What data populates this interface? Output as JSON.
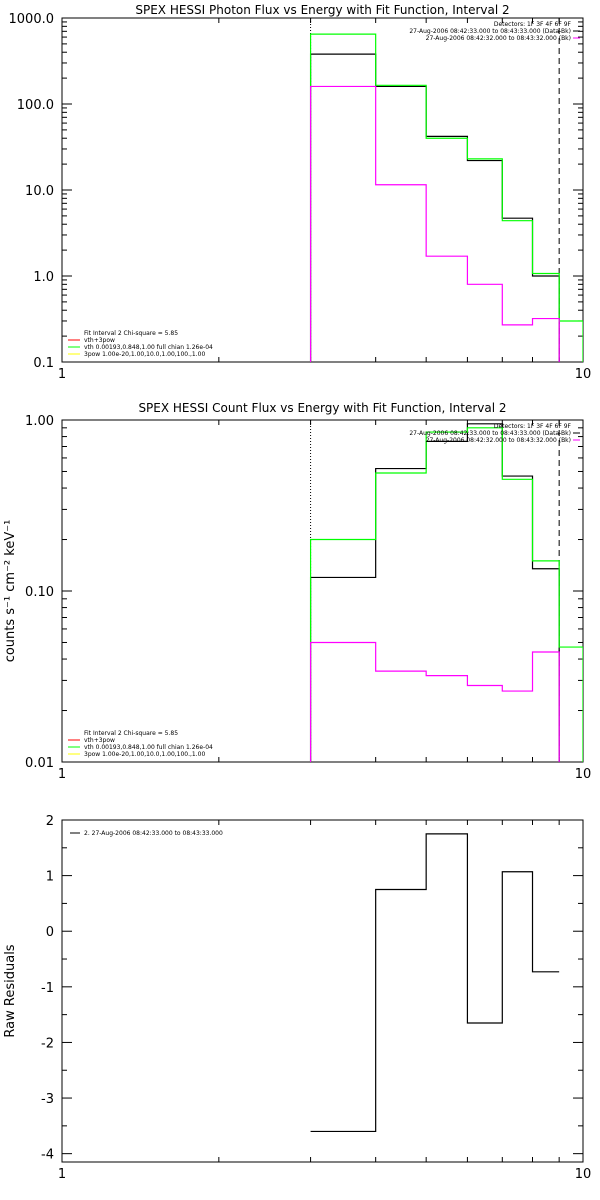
{
  "chart_data": [
    {
      "type": "line",
      "title": "SPEX HESSI Photon Flux vs Energy with Fit Function, Interval 2",
      "xlabel": "",
      "ylabel": "",
      "xscale": "log",
      "yscale": "log",
      "xlim": [
        1,
        10
      ],
      "ylim": [
        0.1,
        1000
      ],
      "x_ticks": [
        "1",
        "10"
      ],
      "y_ticks": [
        "0.1",
        "1.0",
        "10.0",
        "100.0",
        "1000.0"
      ],
      "marker_lines": [
        {
          "x": 3.0,
          "style": "dotted",
          "color": "#000000"
        },
        {
          "x": 9.0,
          "style": "dashed",
          "color": "#000000"
        }
      ],
      "legend_top_right": [
        {
          "text": "Detectors: 1F 3F 4F 6F 9F",
          "color": "#000000"
        },
        {
          "text": "27-Aug-2006 08:42:33.000 to 08:43:33.000 (Data-Bk)",
          "color": "#000000"
        },
        {
          "text": "27-Aug-2006 08:42:32.000 to 08:43:32.000 (Bk)",
          "color": "#ff00ff"
        }
      ],
      "legend_bottom_left": [
        {
          "text": "Fit Interval 2   Chi-square = 5.85",
          "color": "#000000"
        },
        {
          "text": "vth+3pow",
          "color": "#ff0000"
        },
        {
          "text": "vth 0.00193,0.848,1.00   full chian 1.26e-04",
          "color": "#00ff00"
        },
        {
          "text": "3pow 1.00e-20,1.00,10.0,1.00,100.,1.00",
          "color": "#ffff00"
        }
      ],
      "bin_edges": [
        3.0,
        4.0,
        5.0,
        6.0,
        7.0,
        8.0,
        9.0,
        10.0
      ],
      "series": [
        {
          "name": "Data-Bk",
          "color": "#000000",
          "values": [
            380,
            160,
            42,
            22,
            4.7,
            1.0
          ]
        },
        {
          "name": "vth",
          "color": "#00ff00",
          "values": [
            650,
            165,
            40,
            23,
            4.4,
            1.07,
            0.3
          ]
        },
        {
          "name": "Bk",
          "color": "#ff00ff",
          "values": [
            160,
            11.5,
            1.7,
            0.8,
            0.27,
            0.32
          ]
        }
      ]
    },
    {
      "type": "line",
      "title": "SPEX HESSI Count Flux vs Energy with Fit Function, Interval 2",
      "xlabel": "",
      "ylabel": "counts s⁻¹ cm⁻² keV⁻¹",
      "xscale": "log",
      "yscale": "log",
      "xlim": [
        1,
        10
      ],
      "ylim": [
        0.01,
        1
      ],
      "x_ticks": [
        "1",
        "10"
      ],
      "y_ticks": [
        "0.01",
        "0.10",
        "1.00"
      ],
      "marker_lines": [
        {
          "x": 3.0,
          "style": "dotted",
          "color": "#000000"
        },
        {
          "x": 9.0,
          "style": "dashed",
          "color": "#000000"
        }
      ],
      "legend_top_right": [
        {
          "text": "Detectors: 1F 3F 4F 6F 9F",
          "color": "#000000"
        },
        {
          "text": "27-Aug-2006 08:42:33.000 to 08:43:33.000 (Data-Bk)",
          "color": "#000000"
        },
        {
          "text": "27-Aug-2006 08:42:32.000 to 08:43:32.000 (Bk)",
          "color": "#ff00ff"
        }
      ],
      "legend_bottom_left": [
        {
          "text": "Fit Interval 2   Chi-square = 5.85",
          "color": "#000000"
        },
        {
          "text": "vth+3pow",
          "color": "#ff0000"
        },
        {
          "text": "vth 0.00193,0.848,1.00   full chian 1.26e-04",
          "color": "#00ff00"
        },
        {
          "text": "3pow 1.00e-20,1.00,10.0,1.00,100.,1.00",
          "color": "#ffff00"
        }
      ],
      "bin_edges": [
        3.0,
        4.0,
        5.0,
        6.0,
        7.0,
        8.0,
        9.0,
        10.0
      ],
      "series": [
        {
          "name": "Data-Bk",
          "color": "#000000",
          "values": [
            0.12,
            0.52,
            0.75,
            0.95,
            0.47,
            0.135
          ]
        },
        {
          "name": "vth",
          "color": "#00ff00",
          "values": [
            0.2,
            0.49,
            0.85,
            0.9,
            0.45,
            0.15,
            0.047
          ]
        },
        {
          "name": "Bk",
          "color": "#ff00ff",
          "values": [
            0.05,
            0.034,
            0.032,
            0.028,
            0.026,
            0.044
          ]
        }
      ]
    },
    {
      "type": "line",
      "title": "",
      "xlabel": "",
      "ylabel": "Raw Residuals",
      "xscale": "log",
      "yscale": "linear",
      "xlim": [
        1,
        10
      ],
      "ylim": [
        -4.15,
        2.0
      ],
      "x_ticks": [
        "1",
        "10"
      ],
      "y_ticks": [
        "-4",
        "-3",
        "-2",
        "-1",
        "0",
        "1",
        "2"
      ],
      "legend_top_left": [
        {
          "text": "2. 27-Aug-2006 08:42:33.000 to 08:43:33.000",
          "color": "#000000"
        }
      ],
      "bin_edges": [
        3.0,
        4.0,
        5.0,
        6.0,
        7.0,
        8.0,
        9.0
      ],
      "series": [
        {
          "name": "2. 27-Aug-2006 08:42:33.000 to 08:43:33.000",
          "color": "#000000",
          "values": [
            -3.6,
            0.75,
            1.75,
            -1.65,
            1.07,
            -0.73
          ]
        }
      ]
    }
  ]
}
